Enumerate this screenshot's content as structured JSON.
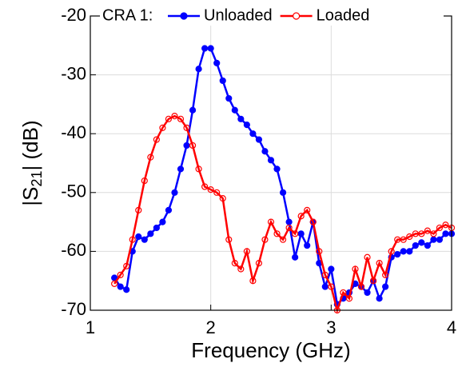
{
  "chart_data": {
    "type": "line",
    "xlabel": "Frequency (GHz)",
    "ylabel": {
      "prefix": "|S",
      "sub": "21",
      "suffix": "| (dB)"
    },
    "legend_title": "CRA 1:",
    "legend": "top",
    "grid": true,
    "x": [
      1.2,
      1.25,
      1.3,
      1.35,
      1.4,
      1.45,
      1.5,
      1.55,
      1.6,
      1.65,
      1.7,
      1.75,
      1.8,
      1.85,
      1.9,
      1.95,
      2.0,
      2.05,
      2.1,
      2.15,
      2.2,
      2.25,
      2.3,
      2.35,
      2.4,
      2.45,
      2.5,
      2.55,
      2.6,
      2.65,
      2.7,
      2.75,
      2.8,
      2.85,
      2.9,
      2.95,
      3.0,
      3.05,
      3.1,
      3.15,
      3.2,
      3.25,
      3.3,
      3.35,
      3.4,
      3.45,
      3.5,
      3.55,
      3.6,
      3.65,
      3.7,
      3.75,
      3.8,
      3.85,
      3.9,
      3.95,
      4.0
    ],
    "series": [
      {
        "name": "Unloaded",
        "color": "#0000ff",
        "marker": "filled",
        "values": [
          -64.5,
          -66,
          -66.5,
          -60,
          -57.5,
          -58,
          -57,
          -56,
          -55,
          -53,
          -50,
          -46,
          -42,
          -36,
          -29,
          -25.5,
          -25.5,
          -28,
          -31,
          -34,
          -36,
          -37.5,
          -38.5,
          -40,
          -41,
          -43,
          -44.5,
          -46,
          -50,
          -55,
          -61,
          -57,
          -59,
          -55,
          -62,
          -66,
          -63,
          -69,
          -68,
          -67,
          -65.5,
          -66,
          -67,
          -65,
          -68,
          -66,
          -61,
          -60.5,
          -60,
          -60,
          -59,
          -58.5,
          -59,
          -58,
          -58,
          -57,
          -57
        ]
      },
      {
        "name": "Loaded",
        "color": "#ff0000",
        "marker": "open",
        "values": [
          -65.5,
          -64,
          -62.5,
          -58,
          -53,
          -48,
          -44,
          -41,
          -39,
          -37.5,
          -37,
          -37.5,
          -39,
          -42,
          -46,
          -49,
          -49.5,
          -50,
          -51,
          -58,
          -62,
          -63,
          -60,
          -65,
          -62,
          -58,
          -55,
          -57,
          -58,
          -56,
          -57,
          -54,
          -53,
          -55,
          -60,
          -64,
          -66,
          -70,
          -67,
          -68,
          -63,
          -66,
          -61,
          -65,
          -62,
          -64,
          -60,
          -58,
          -58,
          -57.5,
          -57,
          -57,
          -56.5,
          -57,
          -56,
          -55.5,
          -56
        ]
      }
    ],
    "xlim": [
      1,
      4
    ],
    "xticks": [
      1,
      2,
      3,
      4
    ],
    "ylim": [
      -70,
      -20
    ],
    "yticks": [
      -70,
      -60,
      -50,
      -40,
      -30,
      -20
    ]
  }
}
